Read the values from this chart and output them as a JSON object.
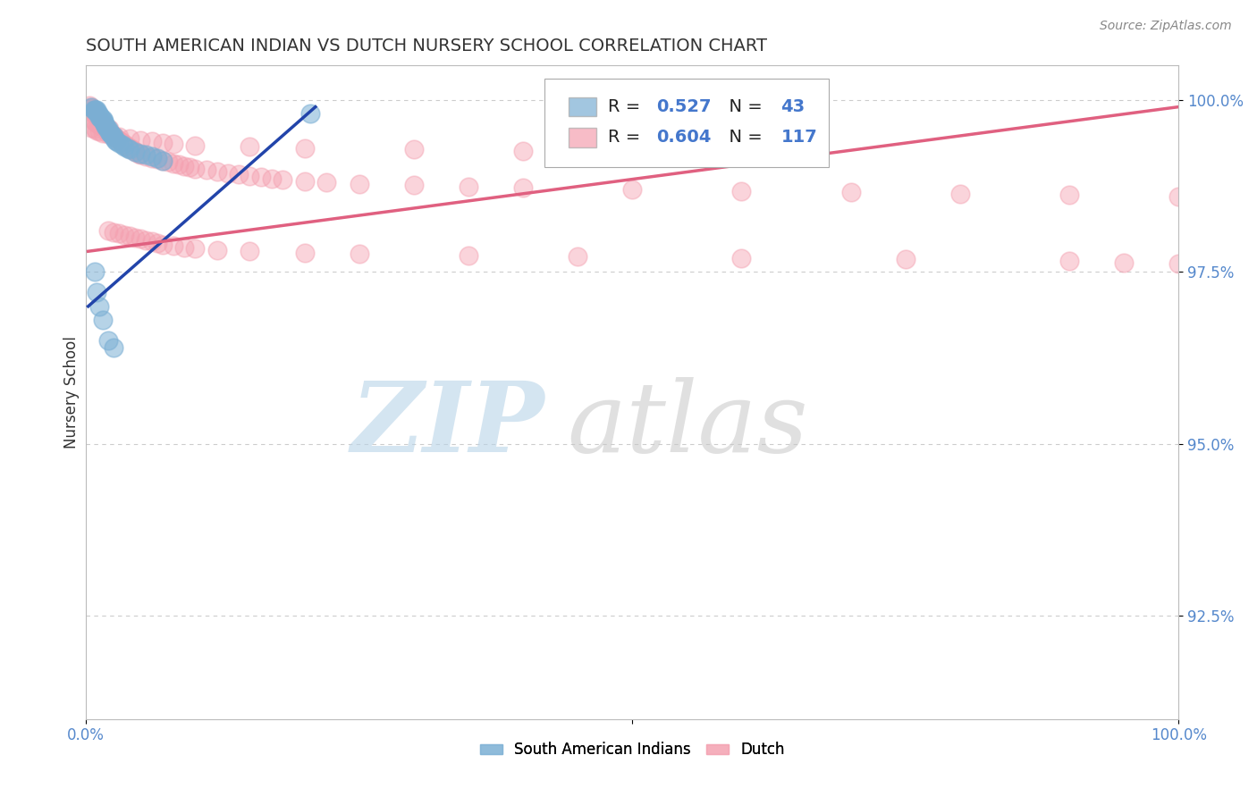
{
  "title": "SOUTH AMERICAN INDIAN VS DUTCH NURSERY SCHOOL CORRELATION CHART",
  "source_text": "Source: ZipAtlas.com",
  "ylabel": "Nursery School",
  "xlabel": "",
  "xlim": [
    0.0,
    1.0
  ],
  "ylim": [
    0.91,
    1.005
  ],
  "yticks": [
    0.925,
    0.95,
    0.975,
    1.0
  ],
  "ytick_labels": [
    "92.5%",
    "95.0%",
    "97.5%",
    "100.0%"
  ],
  "xticks": [
    0.0,
    0.5,
    1.0
  ],
  "xtick_labels": [
    "0.0%",
    "",
    "100.0%"
  ],
  "legend_blue_r": "0.527",
  "legend_blue_n": "43",
  "legend_pink_r": "0.604",
  "legend_pink_n": "117",
  "blue_color": "#7BAFD4",
  "pink_color": "#F4A0B0",
  "blue_line_color": "#2244AA",
  "pink_line_color": "#E06080",
  "watermark_zip": "ZIP",
  "watermark_atlas": "atlas",
  "watermark_color_zip": "#B8D4E8",
  "watermark_color_atlas": "#C8C8C8",
  "background_color": "#FFFFFF",
  "grid_color": "#CCCCCC",
  "title_fontsize": 14,
  "blue_scatter_x": [
    0.005,
    0.007,
    0.008,
    0.009,
    0.01,
    0.01,
    0.011,
    0.012,
    0.012,
    0.013,
    0.014,
    0.015,
    0.016,
    0.016,
    0.017,
    0.018,
    0.019,
    0.02,
    0.021,
    0.022,
    0.023,
    0.025,
    0.025,
    0.027,
    0.028,
    0.03,
    0.033,
    0.035,
    0.038,
    0.04,
    0.045,
    0.05,
    0.055,
    0.06,
    0.065,
    0.07,
    0.008,
    0.01,
    0.012,
    0.015,
    0.02,
    0.025,
    0.205
  ],
  "blue_scatter_y": [
    0.999,
    0.9985,
    0.9985,
    0.9985,
    0.9985,
    0.9982,
    0.998,
    0.9978,
    0.9975,
    0.9975,
    0.9972,
    0.9972,
    0.997,
    0.9968,
    0.9965,
    0.9962,
    0.996,
    0.9958,
    0.9955,
    0.9952,
    0.995,
    0.9948,
    0.9945,
    0.9942,
    0.994,
    0.9938,
    0.9935,
    0.9932,
    0.993,
    0.9928,
    0.9925,
    0.9922,
    0.992,
    0.9918,
    0.9915,
    0.9912,
    0.975,
    0.972,
    0.97,
    0.968,
    0.965,
    0.964,
    0.998
  ],
  "pink_scatter_x": [
    0.003,
    0.004,
    0.005,
    0.006,
    0.007,
    0.007,
    0.008,
    0.009,
    0.01,
    0.011,
    0.012,
    0.013,
    0.014,
    0.015,
    0.016,
    0.017,
    0.018,
    0.019,
    0.02,
    0.022,
    0.023,
    0.025,
    0.026,
    0.028,
    0.03,
    0.032,
    0.033,
    0.035,
    0.036,
    0.038,
    0.04,
    0.042,
    0.044,
    0.046,
    0.048,
    0.05,
    0.055,
    0.06,
    0.065,
    0.07,
    0.075,
    0.08,
    0.085,
    0.09,
    0.095,
    0.1,
    0.11,
    0.12,
    0.13,
    0.14,
    0.15,
    0.16,
    0.17,
    0.18,
    0.2,
    0.22,
    0.25,
    0.3,
    0.35,
    0.4,
    0.5,
    0.6,
    0.7,
    0.8,
    0.9,
    1.0,
    0.005,
    0.008,
    0.01,
    0.012,
    0.015,
    0.02,
    0.025,
    0.03,
    0.04,
    0.05,
    0.06,
    0.07,
    0.08,
    0.1,
    0.15,
    0.2,
    0.3,
    0.4,
    0.5,
    0.02,
    0.025,
    0.03,
    0.035,
    0.04,
    0.045,
    0.05,
    0.055,
    0.06,
    0.065,
    0.07,
    0.08,
    0.09,
    0.1,
    0.12,
    0.15,
    0.2,
    0.25,
    0.35,
    0.45,
    0.6,
    0.75,
    0.9,
    0.95,
    1.0,
    0.007,
    0.009,
    0.011,
    0.013,
    0.016,
    0.018,
    0.021
  ],
  "pink_scatter_y": [
    0.9992,
    0.999,
    0.9988,
    0.9986,
    0.9984,
    0.9982,
    0.998,
    0.9978,
    0.9976,
    0.9974,
    0.9972,
    0.997,
    0.9968,
    0.9966,
    0.9964,
    0.9962,
    0.996,
    0.9958,
    0.9956,
    0.9952,
    0.995,
    0.9948,
    0.9946,
    0.9944,
    0.9942,
    0.994,
    0.9938,
    0.9936,
    0.9934,
    0.9932,
    0.993,
    0.9928,
    0.9926,
    0.9924,
    0.9922,
    0.992,
    0.9918,
    0.9916,
    0.9914,
    0.9912,
    0.991,
    0.9908,
    0.9906,
    0.9904,
    0.9902,
    0.99,
    0.9898,
    0.9896,
    0.9894,
    0.9892,
    0.989,
    0.9888,
    0.9886,
    0.9884,
    0.9882,
    0.988,
    0.9878,
    0.9876,
    0.9874,
    0.9872,
    0.987,
    0.9868,
    0.9866,
    0.9864,
    0.9862,
    0.986,
    0.996,
    0.9958,
    0.9956,
    0.9954,
    0.9952,
    0.995,
    0.9948,
    0.9946,
    0.9944,
    0.9942,
    0.994,
    0.9938,
    0.9936,
    0.9934,
    0.9932,
    0.993,
    0.9928,
    0.9926,
    0.9924,
    0.981,
    0.9808,
    0.9806,
    0.9804,
    0.9802,
    0.98,
    0.9798,
    0.9796,
    0.9794,
    0.9792,
    0.979,
    0.9788,
    0.9786,
    0.9784,
    0.9782,
    0.978,
    0.9778,
    0.9776,
    0.9774,
    0.9772,
    0.977,
    0.9768,
    0.9766,
    0.9764,
    0.9762,
    0.997,
    0.9968,
    0.9966,
    0.9964,
    0.9962,
    0.996,
    0.9958
  ]
}
